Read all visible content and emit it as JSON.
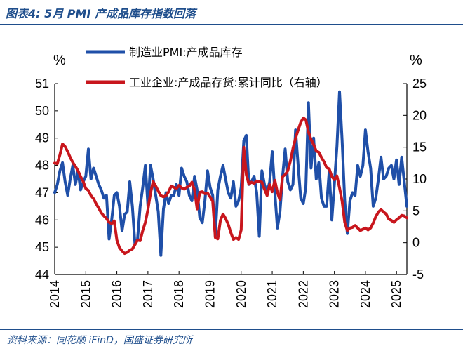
{
  "figure_title": "图表4:  5月 PMI 产成品库存指数回落",
  "source": "资料来源：同花顺 iFinD，国盛证券研究所",
  "colors": {
    "blue": "#1f4fa8",
    "red": "#c8161d",
    "accent": "#1f4e8c"
  },
  "chart_data": {
    "type": "line",
    "left_unit": "%",
    "right_unit": "%",
    "x_ticks": [
      "2014",
      "2015",
      "2016",
      "2017",
      "2018",
      "2019",
      "2020",
      "2021",
      "2022",
      "2023",
      "2024",
      "2025"
    ],
    "xlim": [
      "2014-01",
      "2025-05"
    ],
    "left_ylim": [
      44,
      51
    ],
    "left_yticks": [
      44,
      45,
      46,
      47,
      48,
      49,
      50,
      51
    ],
    "right_ylim": [
      -5,
      25
    ],
    "right_yticks": [
      -5,
      0,
      5,
      10,
      15,
      20,
      25
    ],
    "legend_position": "top",
    "series": [
      {
        "name": "制造业PMI:产成品库存",
        "axis": "left",
        "color": "#1f4fa8",
        "x": [
          "2014-01",
          "2014-02",
          "2014-03",
          "2014-04",
          "2014-05",
          "2014-06",
          "2014-07",
          "2014-08",
          "2014-09",
          "2014-10",
          "2014-11",
          "2014-12",
          "2015-01",
          "2015-02",
          "2015-03",
          "2015-04",
          "2015-05",
          "2015-06",
          "2015-07",
          "2015-08",
          "2015-09",
          "2015-10",
          "2015-11",
          "2015-12",
          "2016-01",
          "2016-02",
          "2016-03",
          "2016-04",
          "2016-05",
          "2016-06",
          "2016-07",
          "2016-08",
          "2016-09",
          "2016-10",
          "2016-11",
          "2016-12",
          "2017-01",
          "2017-02",
          "2017-03",
          "2017-04",
          "2017-05",
          "2017-06",
          "2017-07",
          "2017-08",
          "2017-09",
          "2017-10",
          "2017-11",
          "2017-12",
          "2018-01",
          "2018-02",
          "2018-03",
          "2018-04",
          "2018-05",
          "2018-06",
          "2018-07",
          "2018-08",
          "2018-09",
          "2018-10",
          "2018-11",
          "2018-12",
          "2019-01",
          "2019-02",
          "2019-03",
          "2019-04",
          "2019-05",
          "2019-06",
          "2019-07",
          "2019-08",
          "2019-09",
          "2019-10",
          "2019-11",
          "2019-12",
          "2020-01",
          "2020-02",
          "2020-03",
          "2020-04",
          "2020-05",
          "2020-06",
          "2020-07",
          "2020-08",
          "2020-09",
          "2020-10",
          "2020-11",
          "2020-12",
          "2021-01",
          "2021-02",
          "2021-03",
          "2021-04",
          "2021-05",
          "2021-06",
          "2021-07",
          "2021-08",
          "2021-09",
          "2021-10",
          "2021-11",
          "2021-12",
          "2022-01",
          "2022-02",
          "2022-03",
          "2022-04",
          "2022-05",
          "2022-06",
          "2022-07",
          "2022-08",
          "2022-09",
          "2022-10",
          "2022-11",
          "2022-12",
          "2023-01",
          "2023-02",
          "2023-03",
          "2023-04",
          "2023-05",
          "2023-06",
          "2023-07",
          "2023-08",
          "2023-09",
          "2023-10",
          "2023-11",
          "2023-12",
          "2024-01",
          "2024-02",
          "2024-03",
          "2024-04",
          "2024-05",
          "2024-06",
          "2024-07",
          "2024-08",
          "2024-09",
          "2024-10",
          "2024-11",
          "2024-12",
          "2025-01",
          "2025-02",
          "2025-03",
          "2025-04",
          "2025-05"
        ],
        "values": [
          47.0,
          47.3,
          47.8,
          48.1,
          47.4,
          46.9,
          47.5,
          48.0,
          47.3,
          47.8,
          47.1,
          47.4,
          47.6,
          48.6,
          47.5,
          47.9,
          47.6,
          47.3,
          47.1,
          46.8,
          46.9,
          45.3,
          46.0,
          46.9,
          47.0,
          46.5,
          45.6,
          46.2,
          46.3,
          47.4,
          46.5,
          45.1,
          45.3,
          46.5,
          47.2,
          48.0,
          46.5,
          48.0,
          47.5,
          46.9,
          46.3,
          44.7,
          46.4,
          47.0,
          46.6,
          46.9,
          46.9,
          47.3,
          46.9,
          47.9,
          47.6,
          47.4,
          46.9,
          46.7,
          47.6,
          47.1,
          46.1,
          45.9,
          46.7,
          47.8,
          47.2,
          46.9,
          45.4,
          47.1,
          47.6,
          48.0,
          47.5,
          47.0,
          46.8,
          47.4,
          46.5,
          46.7,
          47.2,
          48.9,
          49.1,
          47.3,
          47.4,
          47.6,
          47.0,
          45.4,
          47.8,
          47.3,
          47.0,
          47.4,
          48.5,
          47.0,
          45.7,
          46.3,
          47.6,
          48.6,
          47.4,
          47.1,
          47.3,
          49.3,
          48.0,
          46.8,
          46.6,
          47.2,
          50.3,
          47.9,
          49.0,
          47.5,
          48.1,
          46.8,
          46.5,
          46.5,
          47.8,
          46.0,
          47.3,
          48.7,
          50.7,
          48.9,
          46.7,
          45.5,
          46.7,
          47.0,
          46.9,
          48.0,
          47.6,
          48.0,
          49.3,
          48.5,
          47.9,
          46.5,
          46.8,
          47.5,
          48.3,
          47.5,
          47.6,
          47.9,
          48.0,
          47.5,
          48.2,
          47.3,
          48.3,
          47.4,
          46.5
        ]
      },
      {
        "name": "工业企业:产成品存货:累计同比（右轴）",
        "axis": "right",
        "color": "#c8161d",
        "x": [
          "2014-01",
          "2014-02",
          "2014-03",
          "2014-04",
          "2014-05",
          "2014-06",
          "2014-07",
          "2014-08",
          "2014-09",
          "2014-10",
          "2014-11",
          "2014-12",
          "2015-01",
          "2015-02",
          "2015-03",
          "2015-04",
          "2015-05",
          "2015-06",
          "2015-07",
          "2015-08",
          "2015-09",
          "2015-10",
          "2015-11",
          "2015-12",
          "2016-01",
          "2016-02",
          "2016-03",
          "2016-04",
          "2016-05",
          "2016-06",
          "2016-07",
          "2016-08",
          "2016-09",
          "2016-10",
          "2016-11",
          "2016-12",
          "2017-01",
          "2017-02",
          "2017-03",
          "2017-04",
          "2017-05",
          "2017-06",
          "2017-07",
          "2017-08",
          "2017-09",
          "2017-10",
          "2017-11",
          "2017-12",
          "2018-01",
          "2018-02",
          "2018-03",
          "2018-04",
          "2018-05",
          "2018-06",
          "2018-07",
          "2018-08",
          "2018-09",
          "2018-10",
          "2018-11",
          "2018-12",
          "2019-01",
          "2019-02",
          "2019-03",
          "2019-04",
          "2019-05",
          "2019-06",
          "2019-07",
          "2019-08",
          "2019-09",
          "2019-10",
          "2019-11",
          "2019-12",
          "2020-01",
          "2020-02",
          "2020-03",
          "2020-04",
          "2020-05",
          "2020-06",
          "2020-07",
          "2020-08",
          "2020-09",
          "2020-10",
          "2020-11",
          "2020-12",
          "2021-01",
          "2021-02",
          "2021-03",
          "2021-04",
          "2021-05",
          "2021-06",
          "2021-07",
          "2021-08",
          "2021-09",
          "2021-10",
          "2021-11",
          "2021-12",
          "2022-01",
          "2022-02",
          "2022-03",
          "2022-04",
          "2022-05",
          "2022-06",
          "2022-07",
          "2022-08",
          "2022-09",
          "2022-10",
          "2022-11",
          "2022-12",
          "2023-01",
          "2023-02",
          "2023-03",
          "2023-04",
          "2023-05",
          "2023-06",
          "2023-07",
          "2023-08",
          "2023-09",
          "2023-10",
          "2023-11",
          "2023-12",
          "2024-01",
          "2024-02",
          "2024-03",
          "2024-04",
          "2024-05",
          "2024-06",
          "2024-07",
          "2024-08",
          "2024-09",
          "2024-10",
          "2024-11",
          "2024-12",
          "2025-01",
          "2025-02",
          "2025-03",
          "2025-04",
          "2025-05"
        ],
        "values": [
          12.5,
          12.4,
          13.8,
          15.5,
          15.1,
          14.3,
          13.4,
          12.6,
          12.0,
          11.3,
          10.4,
          9.6,
          8.5,
          8.2,
          7.4,
          6.9,
          6.1,
          5.4,
          4.7,
          4.2,
          3.8,
          3.2,
          3.0,
          3.4,
          0.4,
          -0.8,
          -1.3,
          -1.7,
          -1.5,
          -1.2,
          -1.0,
          -0.3,
          0.4,
          0.3,
          1.9,
          3.2,
          5.2,
          7.8,
          9.6,
          8.9,
          8.1,
          7.4,
          7.2,
          7.4,
          8.0,
          8.9,
          8.7,
          8.5,
          9.0,
          8.6,
          8.4,
          8.7,
          8.9,
          9.5,
          8.3,
          5.3,
          7.9,
          8.0,
          7.7,
          7.8,
          7.2,
          6.5,
          0.8,
          0.6,
          3.5,
          4.5,
          3.8,
          2.9,
          1.6,
          0.5,
          0.8,
          0.5,
          2.0,
          15.0,
          10.7,
          9.2,
          9.5,
          9.3,
          9.7,
          9.6,
          9.5,
          8.4,
          7.4,
          9.1,
          8.0,
          9.8,
          7.9,
          6.7,
          10.4,
          10.7,
          11.3,
          12.8,
          14.8,
          16.4,
          17.7,
          18.9,
          19.6,
          19.3,
          17.4,
          16.2,
          15.4,
          14.4,
          14.2,
          13.4,
          12.7,
          11.8,
          11.6,
          10.4,
          9.9,
          10.5,
          8.6,
          6.5,
          3.2,
          1.9,
          2.3,
          2.4,
          2.7,
          2.3,
          1.9,
          2.1,
          2.3,
          2.0,
          2.3,
          3.1,
          4.1,
          4.8,
          5.2,
          4.8,
          4.5,
          3.7,
          3.5,
          3.2,
          3.6,
          3.9,
          4.3,
          4.2,
          3.9
        ]
      }
    ]
  }
}
